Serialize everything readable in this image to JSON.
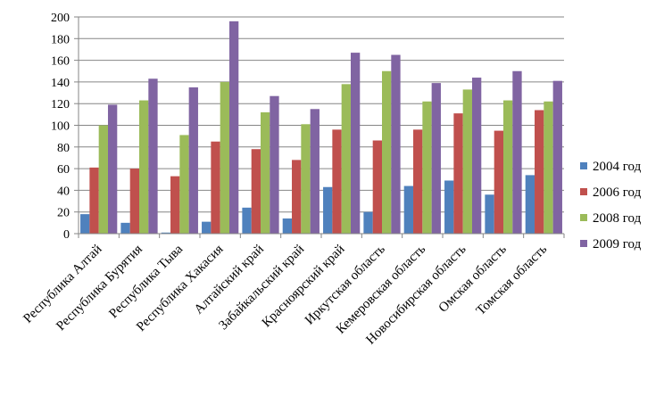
{
  "chart_data": {
    "type": "bar",
    "title": "",
    "xlabel": "",
    "ylabel": "",
    "ylim": [
      0,
      200
    ],
    "ytick_step": 20,
    "grid": true,
    "legend_position": "right",
    "categories": [
      "Республика Алтай",
      "Республика Бурятия",
      "Республика Тыва",
      "Республика Хакасия",
      "Алтайский край",
      "Забайкальский край",
      "Красноярский край",
      "Иркутская область",
      "Кемеровская область",
      "Новосибирская область",
      "Омская область",
      "Томская область"
    ],
    "series": [
      {
        "name": "2004 год",
        "color": "#4f81bd",
        "values": [
          18,
          10,
          1,
          11,
          24,
          14,
          43,
          20,
          44,
          49,
          36,
          54
        ]
      },
      {
        "name": "2006 год",
        "color": "#c0504d",
        "values": [
          61,
          60,
          53,
          85,
          78,
          68,
          96,
          86,
          96,
          111,
          95,
          114
        ]
      },
      {
        "name": "2008 год",
        "color": "#9bbb59",
        "values": [
          100,
          123,
          91,
          140,
          112,
          101,
          138,
          150,
          122,
          133,
          123,
          122
        ]
      },
      {
        "name": "2009 год",
        "color": "#8064a2",
        "values": [
          119,
          143,
          135,
          196,
          127,
          115,
          167,
          165,
          139,
          144,
          150,
          141
        ]
      }
    ]
  }
}
